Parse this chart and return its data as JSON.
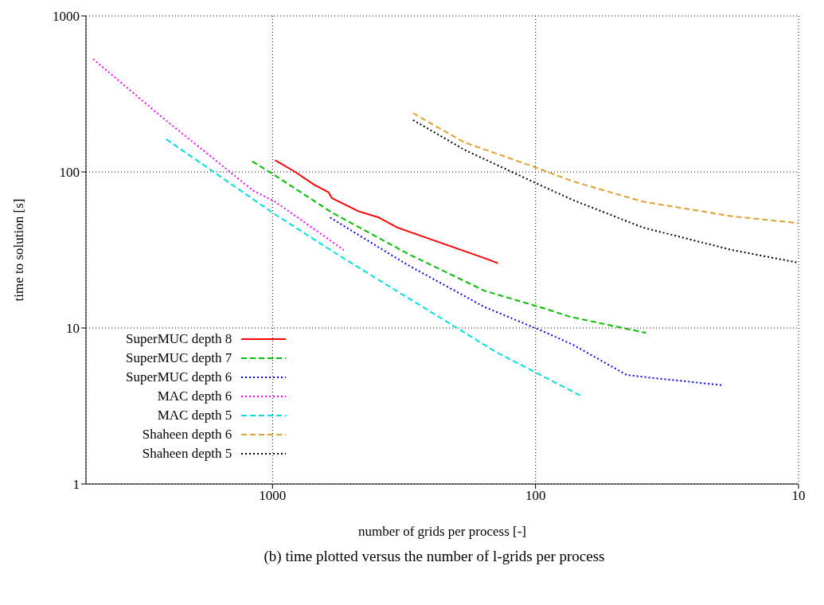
{
  "chart_data": {
    "type": "line",
    "xlabel": "number of grids per process [-]",
    "ylabel": "time to solution [s]",
    "annotations": [
      "(b) time plotted versus the number of l-grids per process"
    ],
    "log": "xy",
    "xlim": [
      5120,
      10
    ],
    "xticks": [
      1000,
      100,
      10
    ],
    "ylim": [
      1,
      1000
    ],
    "yticks": [
      1,
      10,
      100,
      1000
    ],
    "grid": true,
    "legend": "bottom left",
    "marker": "none",
    "series": [
      {
        "name": "SuperMUC depth 8",
        "color": "#ff0000",
        "line_style": "solid",
        "x": [
          979,
          820,
          696,
          612,
          595,
          471,
          394,
          335,
          156,
          139
        ],
        "values": [
          119,
          100,
          83,
          74,
          68,
          56,
          51,
          44,
          28,
          26
        ]
      },
      {
        "name": "SuperMUC depth 7",
        "color": "#00c000",
        "line_style": "dashed",
        "x": [
          1194,
          979,
          595,
          307,
          156,
          92,
          74,
          38
        ],
        "values": [
          117,
          95,
          55,
          30,
          17.3,
          13.3,
          11.8,
          9.3
        ]
      },
      {
        "name": "SuperMUC depth 6",
        "color": "#0000ff",
        "line_style": "dotted",
        "x": [
          604,
          307,
          156,
          92,
          72,
          45,
          36.5,
          19.5
        ],
        "values": [
          51,
          25.4,
          13.6,
          9.4,
          7.8,
          5,
          4.8,
          4.3
        ]
      },
      {
        "name": "MAC depth 6",
        "color": "#ff00ff",
        "line_style": "dotted",
        "x": [
          4810,
          2594,
          1186,
          979,
          535
        ],
        "values": [
          529,
          220,
          76,
          64.5,
          31.6
        ]
      },
      {
        "name": "MAC depth 5",
        "color": "#00e0e0",
        "line_style": "dashed",
        "x": [
          2536,
          979,
          543,
          141,
          66.7
        ],
        "values": [
          162,
          53.5,
          28.3,
          7,
          3.65
        ]
      },
      {
        "name": "Shaheen depth 6",
        "color": "#e0a030",
        "line_style": "dashed",
        "x": [
          292,
          187,
          100,
          72,
          39,
          17.9,
          10
        ],
        "values": [
          238,
          155,
          107,
          87,
          64.5,
          52,
          47
        ]
      },
      {
        "name": "Shaheen depth 5",
        "color": "#000000",
        "line_style": "dotted",
        "x": [
          292,
          187,
          100,
          72,
          39,
          17.9,
          10
        ],
        "values": [
          215,
          139,
          85,
          66,
          44,
          31.6,
          26.2
        ]
      }
    ]
  }
}
